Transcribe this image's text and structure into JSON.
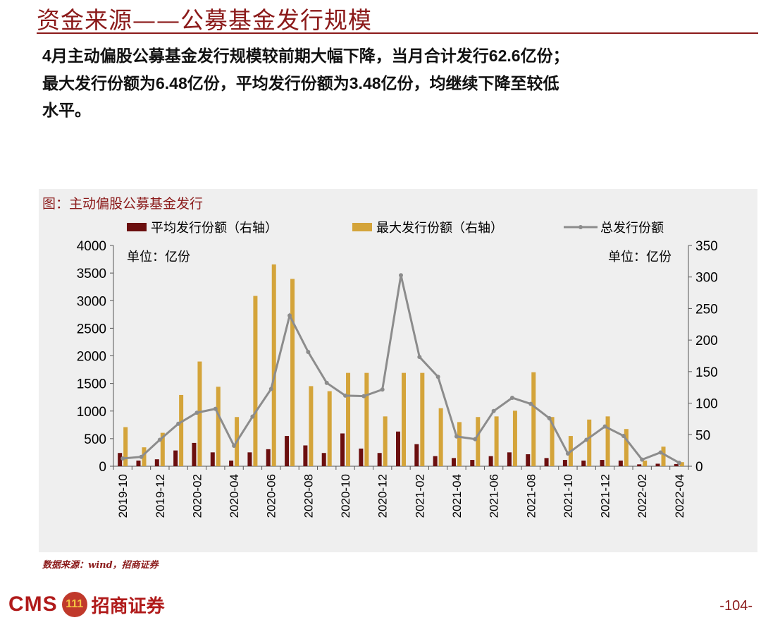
{
  "header": {
    "title": "资金来源——公募基金发行规模"
  },
  "summary": {
    "line1_a": "4",
    "line1_b": "月主动偏股公募基金发行规模较前期大幅下降，当月合计发行",
    "line1_c": "62.6",
    "line1_d": "亿份；",
    "line2_a": "最大发行份额为",
    "line2_b": "6.48",
    "line2_c": "亿份，平均发行份额为",
    "line2_d": "3.48",
    "line2_e": "亿份，均继续下降至较低",
    "line3": "水平。"
  },
  "chart_caption": "图：主动偏股公募基金发行",
  "source": "数据来源：wind，招商证券",
  "footer": {
    "logo_text": "CMS",
    "logo_mark": "111",
    "logo_cn": "招商证券",
    "page_number": "-104-"
  },
  "colors": {
    "avg_bar": "#6b0f0f",
    "max_bar": "#d4a43a",
    "total_line": "#8c8c8c",
    "brand": "#8b1a1a"
  },
  "chart_data": {
    "type": "bar",
    "left_unit": "单位：亿份",
    "right_unit": "单位：亿份",
    "legend": [
      "平均发行份额（右轴）",
      "最大发行份额（右轴）",
      "总发行份额"
    ],
    "legend_position": "top",
    "grid": false,
    "ylim_left": [
      0,
      4000
    ],
    "yticks_left": [
      "0",
      "500",
      "1000",
      "1500",
      "2000",
      "2500",
      "3000",
      "3500",
      "4000"
    ],
    "ylim_right": [
      0,
      350
    ],
    "yticks_right": [
      "0",
      "50",
      "100",
      "150",
      "200",
      "250",
      "300",
      "350"
    ],
    "categories": [
      "2019-10",
      "2019-11",
      "2019-12",
      "2020-01",
      "2020-02",
      "2020-03",
      "2020-04",
      "2020-05",
      "2020-06",
      "2020-07",
      "2020-08",
      "2020-09",
      "2020-10",
      "2020-11",
      "2020-12",
      "2021-01",
      "2021-02",
      "2021-03",
      "2021-04",
      "2021-05",
      "2021-06",
      "2021-07",
      "2021-08",
      "2021-09",
      "2021-10",
      "2021-11",
      "2021-12",
      "2022-01",
      "2022-02",
      "2022-03",
      "2022-04"
    ],
    "xtick_labels": [
      "2019-10",
      "2019-12",
      "2020-02",
      "2020-04",
      "2020-06",
      "2020-08",
      "2020-10",
      "2020-12",
      "2021-02",
      "2021-04",
      "2021-06",
      "2021-08",
      "2021-10",
      "2021-12",
      "2022-02",
      "2022-04"
    ],
    "series": [
      {
        "name": "平均发行份额（右轴）",
        "axis": "right",
        "kind": "bar",
        "values": [
          21,
          9,
          11,
          25,
          37,
          22,
          9,
          22,
          27,
          48,
          33,
          21,
          52,
          28,
          21,
          55,
          35,
          16,
          13,
          10,
          16,
          22,
          19,
          13,
          10,
          9,
          10,
          9,
          3,
          4,
          3.48
        ]
      },
      {
        "name": "最大发行份额（右轴）",
        "axis": "right",
        "kind": "bar",
        "values": [
          62,
          30,
          53,
          113,
          166,
          126,
          78,
          270,
          320,
          297,
          127,
          119,
          148,
          148,
          79,
          148,
          148,
          92,
          70,
          78,
          79,
          88,
          149,
          78,
          48,
          74,
          79,
          59,
          9,
          31,
          6.48
        ]
      },
      {
        "name": "总发行份额",
        "axis": "left",
        "kind": "line",
        "values": [
          140,
          170,
          480,
          770,
          970,
          1040,
          370,
          900,
          1400,
          2730,
          2070,
          1510,
          1280,
          1270,
          1390,
          3460,
          1980,
          1620,
          540,
          490,
          1000,
          1240,
          1130,
          870,
          230,
          480,
          720,
          550,
          120,
          250,
          62.6
        ]
      }
    ]
  }
}
